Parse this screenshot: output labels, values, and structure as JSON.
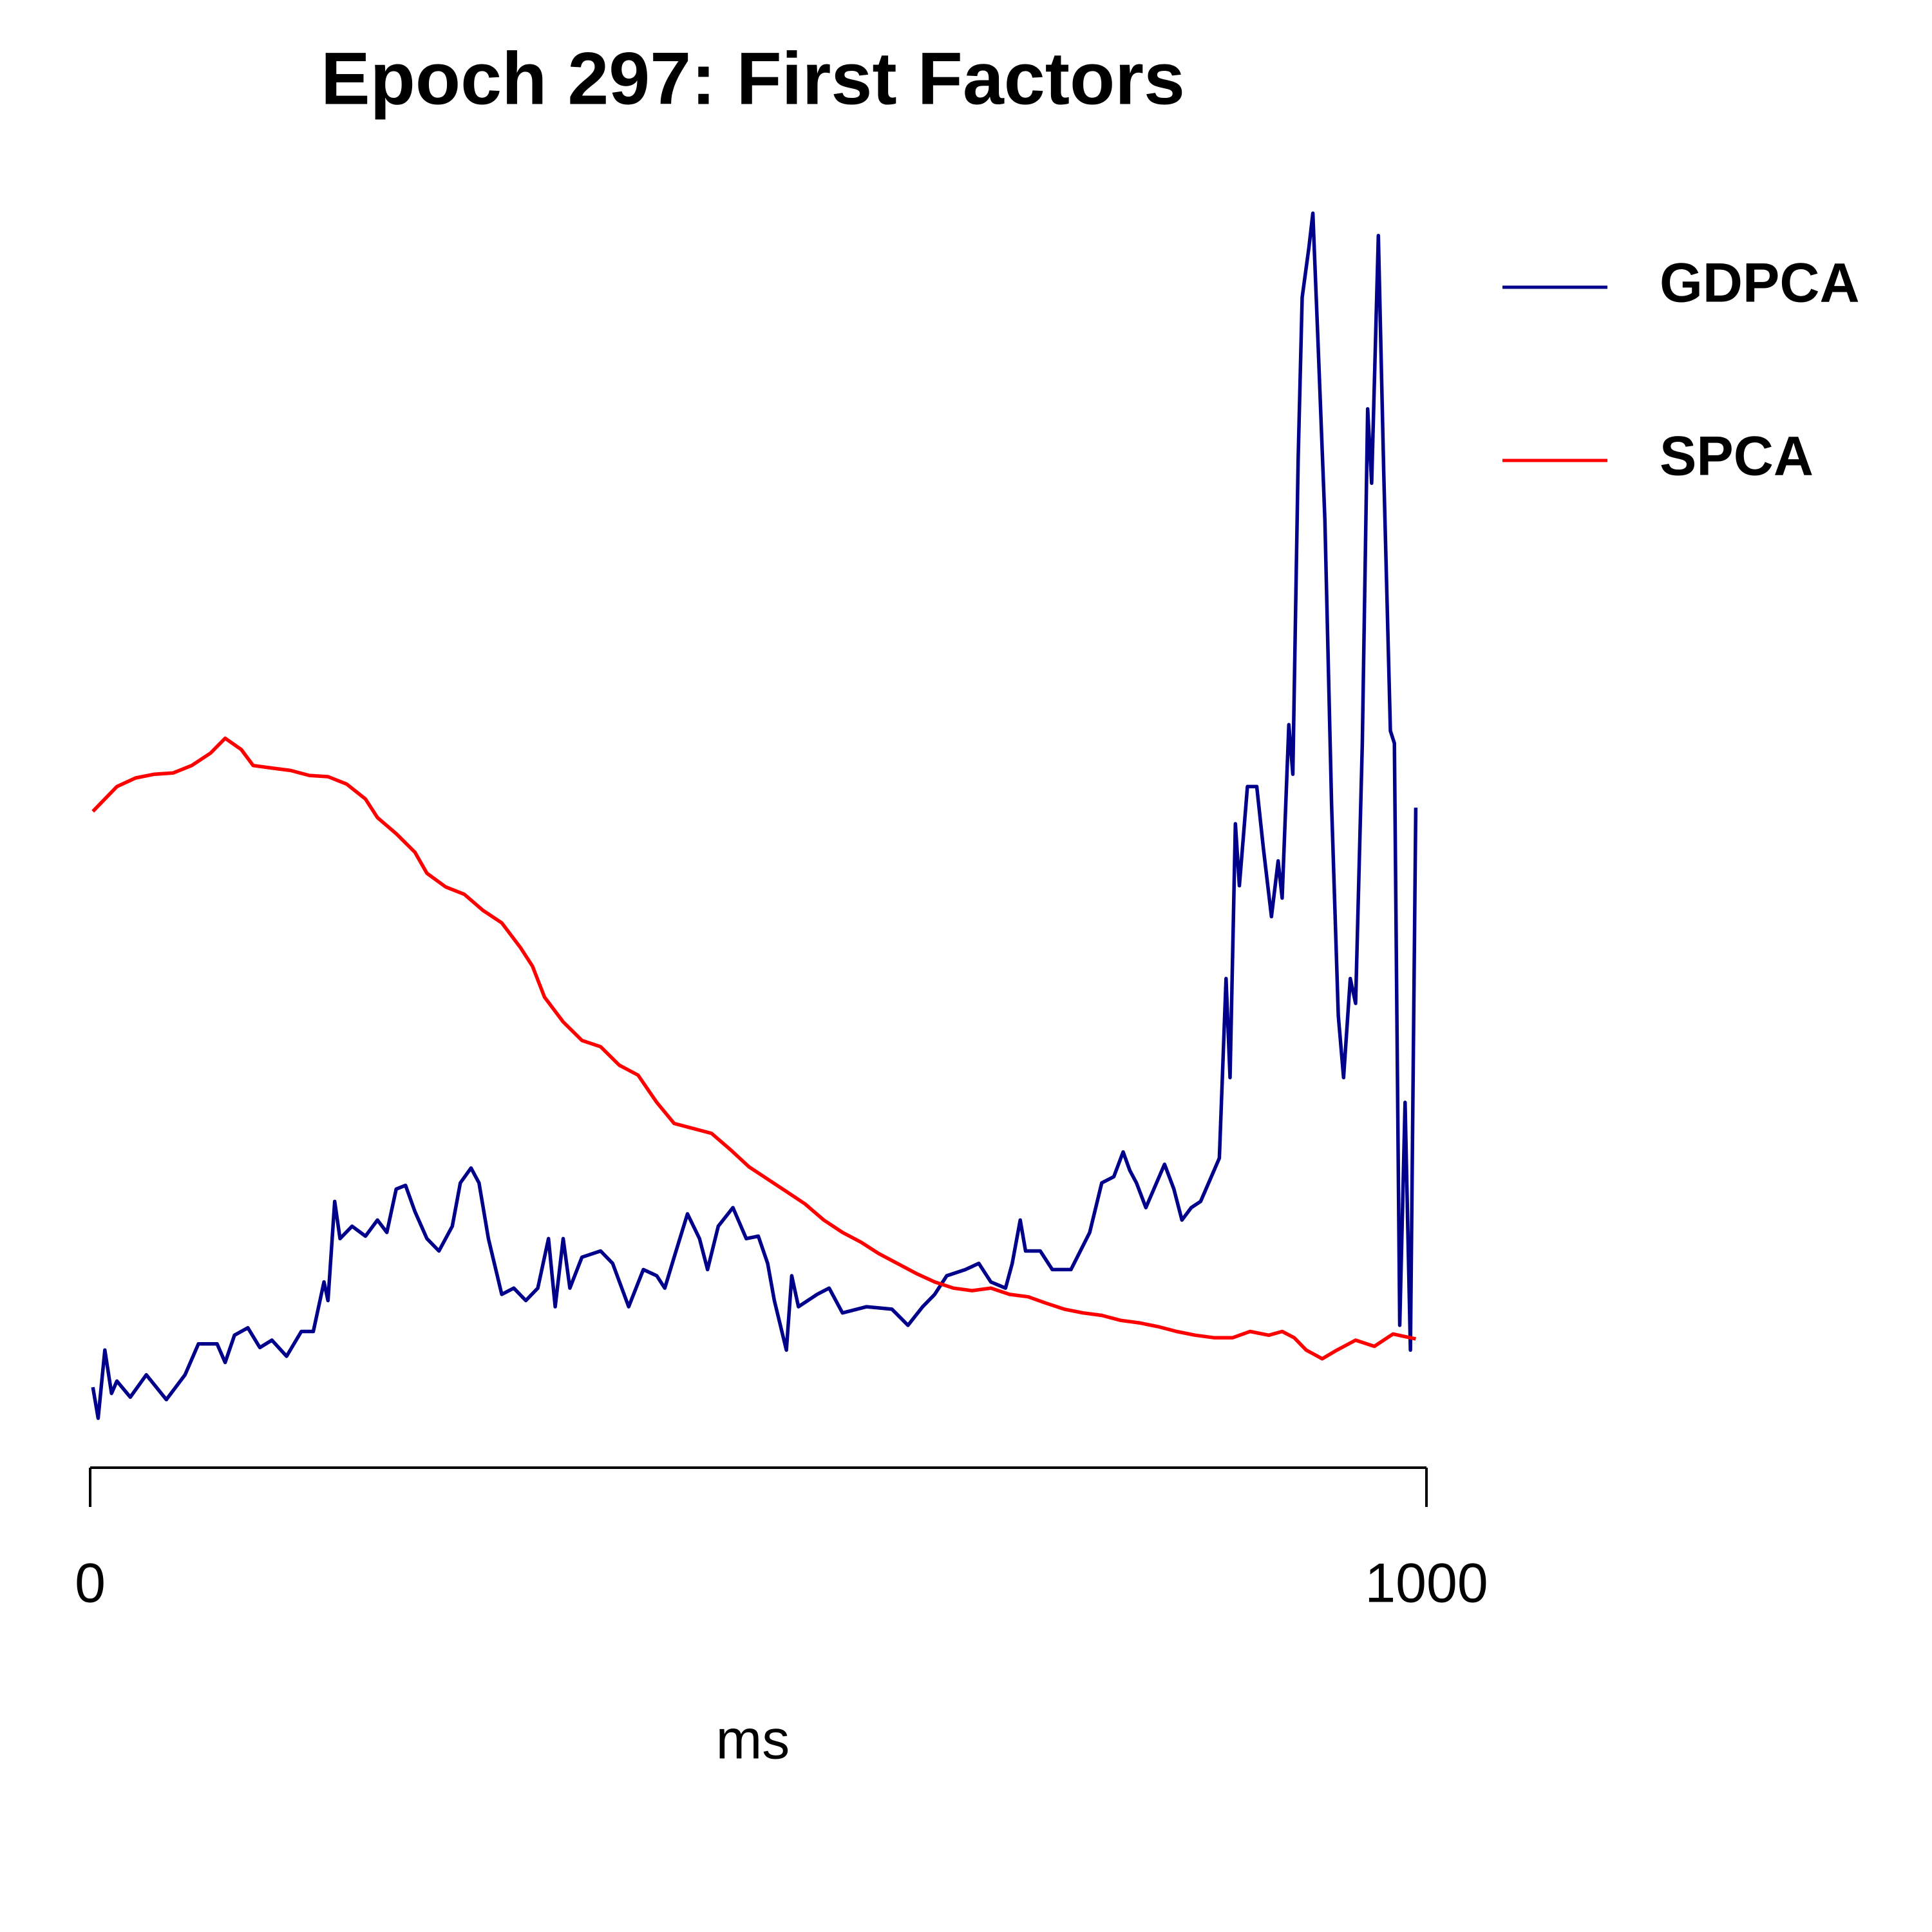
{
  "chart_data": {
    "type": "line",
    "title": "Epoch 297: First Factors",
    "x_label": "ms",
    "xlim": [
      0,
      1000
    ],
    "xticks": [
      0,
      1000
    ],
    "ylim": [
      0,
      100
    ],
    "legend": "right",
    "series": [
      {
        "name": "GDPCA",
        "color": "#00008b",
        "x": [
          2,
          6,
          11,
          16,
          20,
          30,
          42,
          57,
          71,
          81,
          95,
          101,
          108,
          118,
          127,
          136,
          147,
          158,
          167,
          175,
          178,
          183,
          187,
          196,
          206,
          215,
          222,
          229,
          236,
          243,
          252,
          261,
          271,
          277,
          285,
          291,
          298,
          308,
          317,
          326,
          335,
          343,
          348,
          354,
          359,
          368,
          382,
          391,
          403,
          414,
          424,
          430,
          437,
          447,
          456,
          462,
          470,
          481,
          491,
          500,
          507,
          512,
          521,
          525,
          530,
          544,
          553,
          563,
          581,
          600,
          612,
          623,
          632,
          641,
          655,
          665,
          674,
          685,
          690,
          696,
          700,
          711,
          720,
          734,
          748,
          757,
          766,
          773,
          778,
          783,
          790,
          796,
          804,
          811,
          817,
          824,
          831,
          841,
          845,
          850,
          853,
          857,
          860,
          866,
          873,
          878,
          884,
          889,
          892,
          897,
          900,
          904,
          907,
          912,
          915,
          919,
          924,
          929,
          934,
          938,
          943,
          947,
          952,
          956,
          959,
          964,
          968,
          973,
          976,
          980,
          984,
          988,
          992
        ],
        "values": [
          4.0,
          1.5,
          7.0,
          3.5,
          4.5,
          3.2,
          5.0,
          3.0,
          5.0,
          7.5,
          7.5,
          6.0,
          8.2,
          8.8,
          7.2,
          7.8,
          6.5,
          8.5,
          8.5,
          12.5,
          11.0,
          19.0,
          16.0,
          17.0,
          16.2,
          17.5,
          16.5,
          20.0,
          20.3,
          18.2,
          16.0,
          15.0,
          17.0,
          20.5,
          21.7,
          20.5,
          16.0,
          11.5,
          12.0,
          11.0,
          12.0,
          16.0,
          10.5,
          16.0,
          12.0,
          14.5,
          15.0,
          14.0,
          10.5,
          13.5,
          13.0,
          12.0,
          14.5,
          18.0,
          16.0,
          13.5,
          17.0,
          18.5,
          16.0,
          16.2,
          14.0,
          11.0,
          7.0,
          13.0,
          10.5,
          11.5,
          12.0,
          10.0,
          10.5,
          10.3,
          9.0,
          10.5,
          11.5,
          13.0,
          13.5,
          14.0,
          12.5,
          12.0,
          14.0,
          17.5,
          15.0,
          15.0,
          13.5,
          13.5,
          16.5,
          20.5,
          21.0,
          23.0,
          21.5,
          20.5,
          18.5,
          20.0,
          22.0,
          20.0,
          17.5,
          18.5,
          19.0,
          21.5,
          22.5,
          37.0,
          29.0,
          49.5,
          44.5,
          52.5,
          52.5,
          47.5,
          42.0,
          46.5,
          43.5,
          57.5,
          53.5,
          79.0,
          92.0,
          96.0,
          98.8,
          88.0,
          74.0,
          51.0,
          34.0,
          29.0,
          37.0,
          35.0,
          56.0,
          83.0,
          77.0,
          97.0,
          78.0,
          57.0,
          56.0,
          9.0,
          27.0,
          7.0,
          50.8
        ]
      },
      {
        "name": "SPCA",
        "color": "#ff0000",
        "x": [
          2,
          11,
          20,
          34,
          48,
          62,
          76,
          90,
          101,
          113,
          122,
          136,
          150,
          164,
          178,
          192,
          206,
          215,
          229,
          243,
          252,
          266,
          280,
          294,
          308,
          322,
          331,
          340,
          354,
          368,
          382,
          396,
          410,
          424,
          437,
          451,
          465,
          479,
          493,
          507,
          521,
          535,
          549,
          563,
          577,
          590,
          604,
          618,
          632,
          646,
          660,
          674,
          688,
          702,
          715,
          729,
          743,
          757,
          771,
          785,
          799,
          813,
          827,
          841,
          855,
          868,
          882,
          892,
          901,
          910,
          922,
          933,
          947,
          961,
          975,
          992
        ],
        "values": [
          50.5,
          51.5,
          52.5,
          53.2,
          53.5,
          53.6,
          54.2,
          55.2,
          56.4,
          55.5,
          54.2,
          54.0,
          53.8,
          53.4,
          53.3,
          52.7,
          51.5,
          50.0,
          48.7,
          47.2,
          45.5,
          44.4,
          43.8,
          42.5,
          41.5,
          39.5,
          38.0,
          35.5,
          33.5,
          32.0,
          31.5,
          30.0,
          29.2,
          27.0,
          25.3,
          24.9,
          24.5,
          23.2,
          21.8,
          20.8,
          19.8,
          18.8,
          17.5,
          16.5,
          15.7,
          14.8,
          14.0,
          13.2,
          12.5,
          12.0,
          11.8,
          12.0,
          11.5,
          11.3,
          10.8,
          10.3,
          10.0,
          9.8,
          9.4,
          9.2,
          8.9,
          8.5,
          8.2,
          8.0,
          8.0,
          8.5,
          8.2,
          8.5,
          8.0,
          7.0,
          6.3,
          7.0,
          7.8,
          7.3,
          8.3,
          7.9
        ]
      }
    ]
  }
}
